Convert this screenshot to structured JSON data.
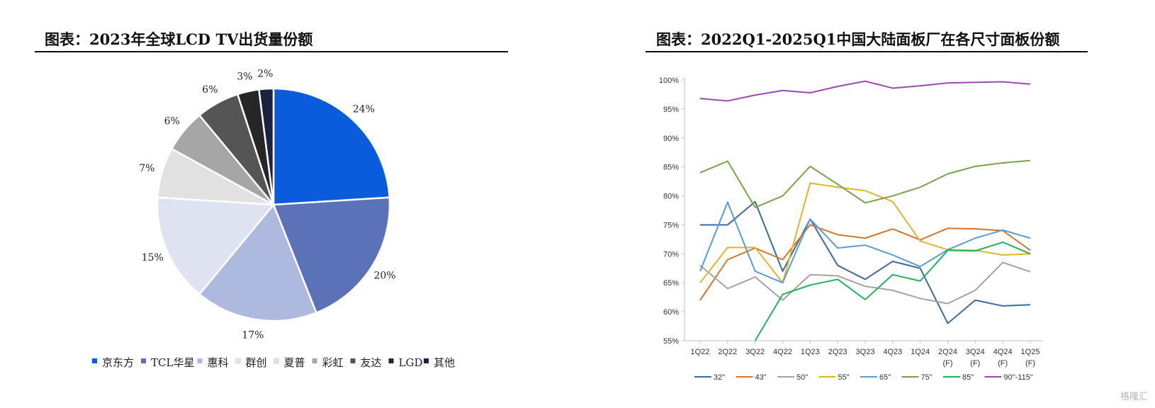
{
  "left": {
    "title": "图表：2023年全球LCD TV出货量份额"
  },
  "right": {
    "title": "图表：2022Q1-2025Q1中国大陆面板厂在各尺寸面板份额"
  },
  "watermark": "格隆汇",
  "chart_data": [
    {
      "type": "pie",
      "title": "",
      "slices": [
        {
          "label": "京东方",
          "value": 24,
          "text": "24%",
          "color": "#0a5cdc"
        },
        {
          "label": "TCL华星",
          "value": 20,
          "text": "20%",
          "color": "#5b72b8"
        },
        {
          "label": "惠科",
          "value": 17,
          "text": "17%",
          "color": "#adb9de"
        },
        {
          "label": "群创",
          "value": 15,
          "text": "15%",
          "color": "#dfe3f1"
        },
        {
          "label": "夏普",
          "value": 7,
          "text": "7%",
          "color": "#e1e1e1"
        },
        {
          "label": "彩虹",
          "value": 6,
          "text": "6%",
          "color": "#a6a6a6"
        },
        {
          "label": "友达",
          "value": 6,
          "text": "6%",
          "color": "#555555"
        },
        {
          "label": "LGD",
          "value": 3,
          "text": "3%",
          "color": "#262626"
        },
        {
          "label": "其他",
          "value": 2,
          "text": "2%",
          "color": "#1a2440"
        }
      ],
      "legend_position": "bottom"
    },
    {
      "type": "line",
      "title": "",
      "categories": [
        "1Q22",
        "2Q22",
        "3Q22",
        "4Q22",
        "1Q23",
        "2Q23",
        "3Q23",
        "4Q23",
        "1Q24",
        "2Q24\n(F)",
        "3Q24\n(F)",
        "4Q24\n(F)",
        "1Q25\n(F)"
      ],
      "ylim": [
        0.55,
        1.0
      ],
      "yticks": [
        "55%",
        "60%",
        "65%",
        "70%",
        "75%",
        "80%",
        "85%",
        "90%",
        "95%",
        "100%"
      ],
      "grid": false,
      "legend_position": "bottom",
      "series": [
        {
          "name": "32\"",
          "color": "#3f6aa1",
          "values": [
            0.75,
            0.75,
            0.79,
            0.67,
            0.76,
            0.68,
            0.656,
            0.687,
            0.675,
            0.58,
            0.62,
            0.61,
            0.612
          ]
        },
        {
          "name": "43\"",
          "color": "#d2782e",
          "values": [
            0.62,
            0.69,
            0.71,
            0.69,
            0.75,
            0.733,
            0.727,
            0.743,
            0.724,
            0.744,
            0.743,
            0.74,
            0.706
          ]
        },
        {
          "name": "50\"",
          "color": "#a3a3a3",
          "values": [
            0.68,
            0.64,
            0.66,
            0.62,
            0.664,
            0.662,
            0.644,
            0.637,
            0.623,
            0.614,
            0.637,
            0.685,
            0.669
          ]
        },
        {
          "name": "55\"",
          "color": "#e1b52a",
          "values": [
            0.65,
            0.711,
            0.711,
            0.65,
            0.822,
            0.815,
            0.809,
            0.79,
            0.722,
            0.707,
            0.706,
            0.698,
            0.7
          ]
        },
        {
          "name": "65\"",
          "color": "#5b9bd0",
          "values": [
            0.67,
            0.789,
            0.67,
            0.65,
            0.76,
            0.71,
            0.715,
            0.698,
            0.678,
            0.707,
            0.727,
            0.741,
            0.727
          ]
        },
        {
          "name": "75\"",
          "color": "#79a44c",
          "values": [
            0.84,
            0.86,
            0.78,
            0.8,
            0.851,
            0.82,
            0.788,
            0.8,
            0.815,
            0.838,
            0.851,
            0.857,
            0.861
          ]
        },
        {
          "name": "85\"",
          "color": "#23b35c",
          "values": [
            null,
            null,
            0.54,
            0.63,
            0.646,
            0.656,
            0.621,
            0.664,
            0.653,
            0.706,
            0.705,
            0.72,
            0.7
          ]
        },
        {
          "name": "90\"-115\"",
          "color": "#9a4bb3",
          "values": [
            0.968,
            0.964,
            0.974,
            0.982,
            0.978,
            0.989,
            0.998,
            0.986,
            0.99,
            0.995,
            0.996,
            0.997,
            0.993
          ]
        }
      ]
    }
  ]
}
